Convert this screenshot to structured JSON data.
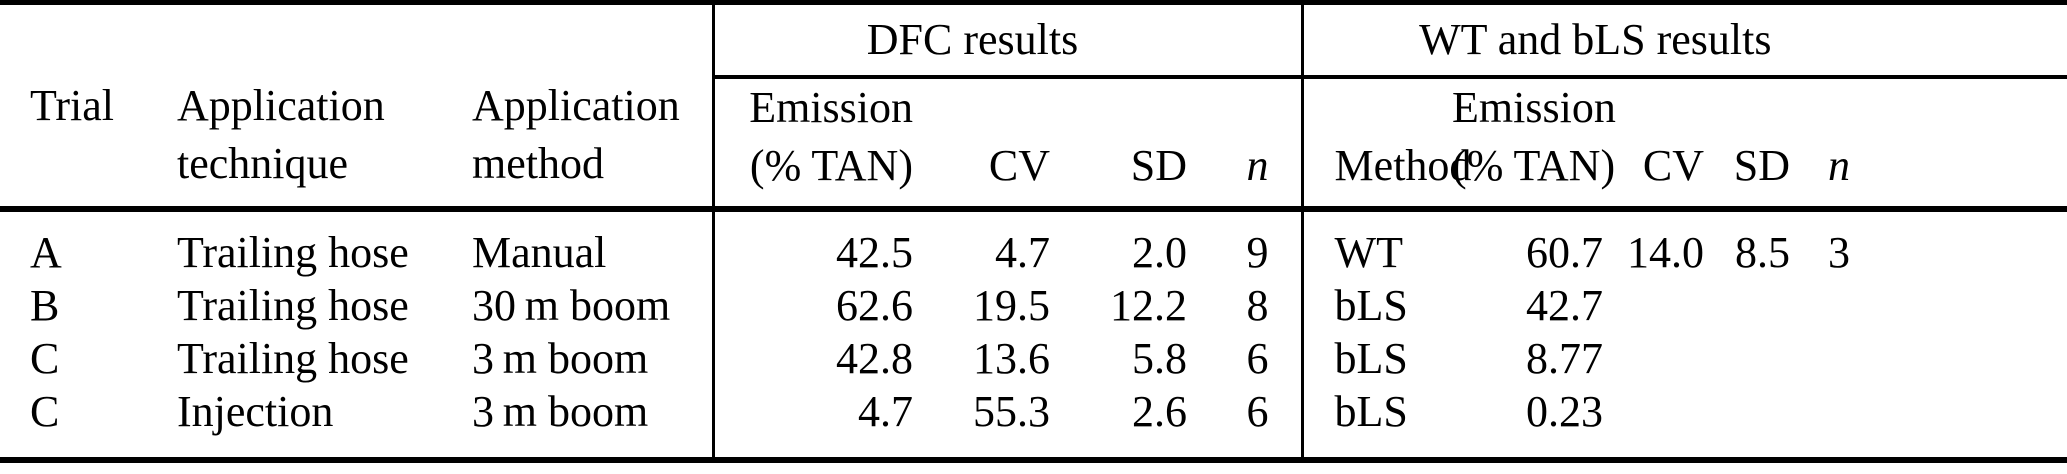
{
  "table": {
    "group_headers": {
      "dfc": "DFC results",
      "wt_bls": "WT and bLS results"
    },
    "columns": {
      "trial": "Trial",
      "technique_line1": "Application",
      "technique_line2": "technique",
      "method_line1": "Application",
      "method_line2": "method",
      "dfc_emission_line1": "Emission",
      "dfc_emission_line2": "(% TAN)",
      "dfc_cv": "CV",
      "dfc_sd": "SD",
      "dfc_n": "n",
      "wt_method": "Method",
      "wt_emission_line1": "Emission",
      "wt_emission_line2": "(% TAN)",
      "wt_cv": "CV",
      "wt_sd": "SD",
      "wt_n": "n"
    },
    "rows": [
      {
        "trial": "A",
        "technique": "Trailing hose",
        "method": "Manual",
        "dfc_emission": "42.5",
        "dfc_cv": "4.7",
        "dfc_sd": "2.0",
        "dfc_n": "9",
        "wt_method": "WT",
        "wt_emission": "60.7",
        "wt_cv": "14.0",
        "wt_sd": "8.5",
        "wt_n": "3"
      },
      {
        "trial": "B",
        "technique": "Trailing hose",
        "method": "30 m boom",
        "dfc_emission": "62.6",
        "dfc_cv": "19.5",
        "dfc_sd": "12.2",
        "dfc_n": "8",
        "wt_method": "bLS",
        "wt_emission": "42.7",
        "wt_cv": "",
        "wt_sd": "",
        "wt_n": ""
      },
      {
        "trial": "C",
        "technique": "Trailing hose",
        "method": "3 m boom",
        "dfc_emission": "42.8",
        "dfc_cv": "13.6",
        "dfc_sd": "5.8",
        "dfc_n": "6",
        "wt_method": "bLS",
        "wt_emission": "8.77",
        "wt_cv": "",
        "wt_sd": "",
        "wt_n": ""
      },
      {
        "trial": "C",
        "technique": "Injection",
        "method": "3 m boom",
        "dfc_emission": "4.7",
        "dfc_cv": "55.3",
        "dfc_sd": "2.6",
        "dfc_n": "6",
        "wt_method": "bLS",
        "wt_emission": "0.23",
        "wt_cv": "",
        "wt_sd": "",
        "wt_n": ""
      }
    ]
  }
}
